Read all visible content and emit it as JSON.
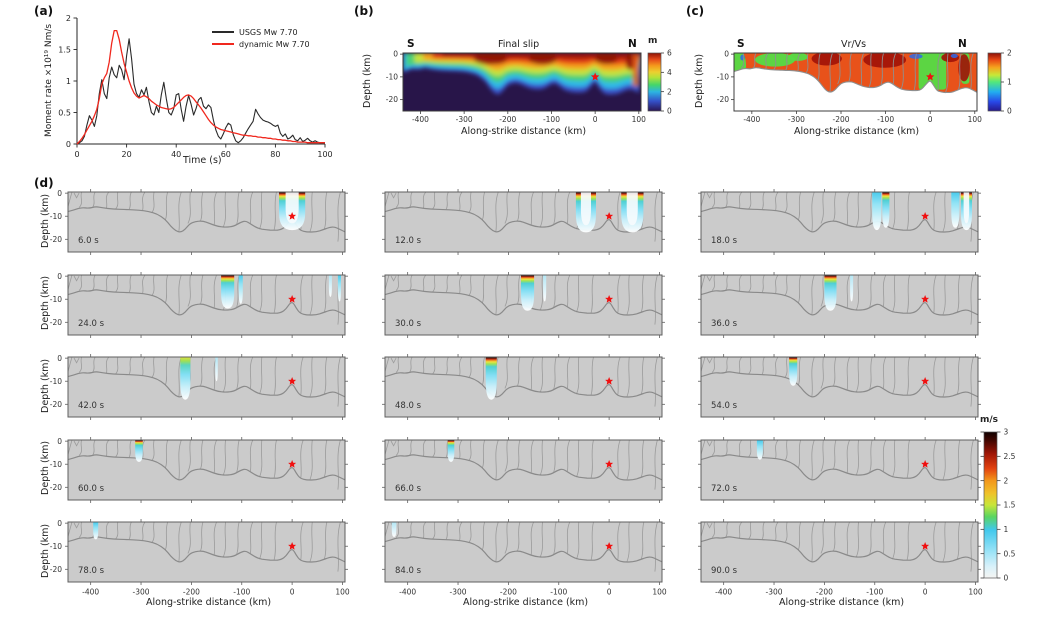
{
  "figure": {
    "background": "#ffffff"
  },
  "panels": {
    "a": {
      "label": "(a)",
      "xlabel": "Time (s)",
      "ylabel": "Moment rate ×10¹⁹ Nm/s",
      "xticks": [
        0,
        20,
        40,
        60,
        80,
        100
      ],
      "yticks": [
        0,
        0.5,
        1,
        1.5,
        2
      ],
      "legend": [
        {
          "label": "USGS Mw 7.70",
          "color": "#2a2a2a"
        },
        {
          "label": "dynamic Mw 7.70",
          "color": "#f0281e"
        }
      ]
    },
    "b": {
      "label": "(b)",
      "title": "Final slip",
      "south": "S",
      "north": "N",
      "xlabel": "Along-strike distance (km)",
      "ylabel": "Depth (km)",
      "xticks": [
        -400,
        -300,
        -200,
        -100,
        0,
        100
      ],
      "yticks": [
        0,
        -10,
        -20
      ],
      "colorbar": {
        "label": "m",
        "ticks": [
          0,
          2,
          4,
          6
        ],
        "stops": [
          [
            0,
            "#2a1553"
          ],
          [
            0.17,
            "#3450c8"
          ],
          [
            0.33,
            "#2cb4e2"
          ],
          [
            0.45,
            "#44d66a"
          ],
          [
            0.58,
            "#b4e238"
          ],
          [
            0.67,
            "#ecd030"
          ],
          [
            0.78,
            "#f59a1c"
          ],
          [
            0.89,
            "#e4491a"
          ],
          [
            1,
            "#8e1206"
          ]
        ]
      }
    },
    "c": {
      "label": "(c)",
      "title": "Vr/Vs",
      "south": "S",
      "north": "N",
      "xlabel": "Along-strike distance (km)",
      "ylabel": "Depth (km)",
      "xticks": [
        -400,
        -300,
        -200,
        -100,
        0,
        100
      ],
      "yticks": [
        0,
        -10,
        -20
      ],
      "colorbar": {
        "label": "",
        "ticks": [
          0,
          1,
          2
        ],
        "stops": [
          [
            0,
            "#26188c"
          ],
          [
            0.16,
            "#2848e8"
          ],
          [
            0.33,
            "#22aef0"
          ],
          [
            0.5,
            "#52e87c"
          ],
          [
            0.62,
            "#c8e838"
          ],
          [
            0.75,
            "#f5a41e"
          ],
          [
            0.88,
            "#e84814"
          ],
          [
            1,
            "#8c1008"
          ]
        ]
      }
    },
    "d": {
      "label": "(d)",
      "xlabel": "Along-strike distance (km)",
      "ylabel": "Depth (km)",
      "xticks": [
        -400,
        -300,
        -200,
        -100,
        0,
        100
      ],
      "yticks": [
        0,
        -10,
        -20
      ],
      "colorbar": {
        "label": "m/s",
        "ticks": [
          0,
          0.5,
          1,
          1.5,
          2,
          2.5,
          3
        ],
        "stops": [
          [
            0,
            "#f5f5f3"
          ],
          [
            0.08,
            "#d8f1fa"
          ],
          [
            0.2,
            "#8fe0f6"
          ],
          [
            0.33,
            "#41c8ec"
          ],
          [
            0.42,
            "#5ad560"
          ],
          [
            0.5,
            "#c8e63a"
          ],
          [
            0.58,
            "#f0c22a"
          ],
          [
            0.67,
            "#f2951a"
          ],
          [
            0.75,
            "#e24210"
          ],
          [
            0.85,
            "#a01606"
          ],
          [
            0.95,
            "#3a0500"
          ],
          [
            1,
            "#100000"
          ]
        ]
      }
    }
  },
  "chart_data": [
    {
      "type": "line",
      "panel": "a",
      "xlabel": "Time (s)",
      "ylabel": "Moment rate ×10¹⁹ Nm/s",
      "xlim": [
        0,
        100
      ],
      "ylim": [
        0,
        2
      ],
      "x_start": 0,
      "x_step": 1,
      "series": [
        {
          "name": "USGS Mw 7.70",
          "color": "#2a2a2a",
          "y": [
            0.0,
            0.02,
            0.05,
            0.12,
            0.3,
            0.45,
            0.38,
            0.28,
            0.45,
            0.8,
            1.02,
            0.8,
            0.72,
            1.05,
            1.22,
            1.1,
            1.05,
            1.25,
            1.18,
            1.02,
            1.4,
            1.67,
            1.35,
            0.95,
            0.8,
            0.74,
            0.86,
            0.78,
            0.9,
            0.68,
            0.5,
            0.46,
            0.6,
            0.5,
            0.78,
            0.98,
            0.72,
            0.5,
            0.46,
            0.56,
            0.78,
            0.8,
            0.55,
            0.36,
            0.6,
            0.77,
            0.63,
            0.46,
            0.56,
            0.7,
            0.74,
            0.6,
            0.56,
            0.62,
            0.58,
            0.38,
            0.22,
            0.12,
            0.08,
            0.16,
            0.26,
            0.33,
            0.3,
            0.15,
            0.05,
            0.02,
            0.05,
            0.1,
            0.17,
            0.24,
            0.3,
            0.36,
            0.55,
            0.48,
            0.42,
            0.38,
            0.36,
            0.35,
            0.33,
            0.3,
            0.28,
            0.3,
            0.17,
            0.12,
            0.16,
            0.08,
            0.1,
            0.14,
            0.07,
            0.05,
            0.1,
            0.04,
            0.06,
            0.09,
            0.05,
            0.03,
            0.05,
            0.03,
            0.02,
            0.02,
            0.02
          ]
        },
        {
          "name": "dynamic Mw 7.70",
          "color": "#f0281e",
          "y": [
            0.0,
            0.04,
            0.09,
            0.15,
            0.22,
            0.29,
            0.36,
            0.45,
            0.55,
            0.72,
            0.95,
            1.05,
            1.12,
            1.3,
            1.6,
            1.8,
            1.8,
            1.66,
            1.46,
            1.28,
            1.14,
            1.0,
            0.89,
            0.81,
            0.76,
            0.73,
            0.75,
            0.77,
            0.75,
            0.72,
            0.68,
            0.65,
            0.62,
            0.6,
            0.58,
            0.57,
            0.56,
            0.55,
            0.56,
            0.58,
            0.62,
            0.66,
            0.7,
            0.74,
            0.77,
            0.78,
            0.76,
            0.72,
            0.67,
            0.62,
            0.57,
            0.51,
            0.45,
            0.39,
            0.34,
            0.3,
            0.27,
            0.25,
            0.23,
            0.22,
            0.21,
            0.2,
            0.19,
            0.18,
            0.17,
            0.16,
            0.15,
            0.14,
            0.14,
            0.13,
            0.13,
            0.12,
            0.12,
            0.11,
            0.11,
            0.1,
            0.1,
            0.09,
            0.09,
            0.08,
            0.08,
            0.07,
            0.07,
            0.06,
            0.06,
            0.05,
            0.05,
            0.04,
            0.04,
            0.03,
            0.03,
            0.03,
            0.03,
            0.02,
            0.02,
            0.02,
            0.02,
            0.02,
            0.02,
            0.02,
            0.02
          ]
        }
      ]
    },
    {
      "type": "heatmap",
      "panel": "b",
      "title": "Final slip",
      "units": "m",
      "zmin": 0,
      "zmax": 6,
      "xlim": [
        -440,
        105
      ],
      "ylim": [
        -25,
        0.5
      ],
      "epicenter": {
        "x_km": 0,
        "depth_km": -10
      },
      "high_slip_band": "4-6 m slip concentrated above ~-8 km from x=-370 to x=100, grading through 2-3 m (green) and 0-1 m (blue) toward the slab bottom; near-zero slip below",
      "slip_zone_bottom_km": [
        [
          -445,
          -8
        ],
        [
          -432,
          -7.2
        ],
        [
          -418,
          -6.2
        ],
        [
          -404,
          -6.6
        ],
        [
          -390,
          -5.8
        ],
        [
          -376,
          -6.4
        ],
        [
          -355,
          -6.9
        ],
        [
          -330,
          -7.1
        ],
        [
          -305,
          -7.3
        ],
        [
          -285,
          -7.9
        ],
        [
          -268,
          -9
        ],
        [
          -252,
          -11.3
        ],
        [
          -241,
          -14.3
        ],
        [
          -231,
          -16.4
        ],
        [
          -221,
          -17
        ],
        [
          -212,
          -15.6
        ],
        [
          -203,
          -13.2
        ],
        [
          -192,
          -12.3
        ],
        [
          -178,
          -12
        ],
        [
          -163,
          -13.2
        ],
        [
          -148,
          -14.4
        ],
        [
          -132,
          -14.8
        ],
        [
          -116,
          -14.4
        ],
        [
          -102,
          -12.6
        ],
        [
          -92,
          -12
        ],
        [
          -82,
          -13.4
        ],
        [
          -68,
          -15.3
        ],
        [
          -52,
          -15.9
        ],
        [
          -36,
          -16.1
        ],
        [
          -22,
          -15.9
        ],
        [
          -12,
          -14.2
        ],
        [
          -4,
          -11.6
        ],
        [
          2,
          -11.4
        ],
        [
          8,
          -13.8
        ],
        [
          16,
          -16.2
        ],
        [
          30,
          -16.9
        ],
        [
          48,
          -16.8
        ],
        [
          62,
          -15.8
        ],
        [
          74,
          -14.8
        ],
        [
          84,
          -14.6
        ],
        [
          94,
          -15.6
        ],
        [
          105,
          -16.8
        ]
      ]
    },
    {
      "type": "heatmap",
      "panel": "c",
      "title": "Vr/Vs",
      "zmin": 0,
      "zmax": 2,
      "xlim": [
        -440,
        105
      ],
      "ylim": [
        -25,
        0.5
      ],
      "epicenter": {
        "x_km": 0,
        "depth_km": -10
      },
      "dominant_ratio_range": [
        1.4,
        2.0
      ],
      "low_ratio_patches_km": [
        [
          -445,
          -410
        ],
        [
          -400,
          -280
        ],
        [
          -28,
          38
        ],
        [
          68,
          90
        ]
      ]
    },
    {
      "type": "heatmap-small-multiples",
      "panel": "d",
      "title": "Slip-rate snapshots",
      "units": "m/s",
      "zmin": 0,
      "zmax": 3,
      "epicenter": {
        "x_km": 0,
        "depth_km": -10
      },
      "snapshots": [
        {
          "time_label": "6.0 s",
          "time_s": 6,
          "pulses": [
            {
              "x_km": 0,
              "width_km": 52,
              "depth_km": -16,
              "intensity": "hot",
              "hollow": true
            }
          ]
        },
        {
          "time_label": "12.0 s",
          "time_s": 12,
          "pulses": [
            {
              "x_km": -46,
              "width_km": 40,
              "depth_km": -17,
              "intensity": "hot",
              "hollow": true
            },
            {
              "x_km": 46,
              "width_km": 44,
              "depth_km": -17,
              "intensity": "hot",
              "hollow": true
            }
          ]
        },
        {
          "time_label": "18.0 s",
          "time_s": 18,
          "pulses": [
            {
              "x_km": -96,
              "width_km": 18,
              "depth_km": -16,
              "intensity": "cyan"
            },
            {
              "x_km": -78,
              "width_km": 14,
              "depth_km": -15,
              "intensity": "hot"
            },
            {
              "x_km": 60,
              "width_km": 16,
              "depth_km": -15,
              "intensity": "cyan"
            },
            {
              "x_km": 82,
              "width_km": 22,
              "depth_km": -16,
              "intensity": "hot",
              "hollow": true
            }
          ]
        },
        {
          "time_label": "24.0 s",
          "time_s": 24,
          "pulses": [
            {
              "x_km": -128,
              "width_km": 26,
              "depth_km": -14,
              "intensity": "hot"
            },
            {
              "x_km": -102,
              "width_km": 8,
              "depth_km": -12,
              "intensity": "cyan"
            },
            {
              "x_km": 76,
              "width_km": 6,
              "depth_km": -9,
              "intensity": "faint"
            },
            {
              "x_km": 94,
              "width_km": 6,
              "depth_km": -11,
              "intensity": "cyan"
            }
          ]
        },
        {
          "time_label": "30.0 s",
          "time_s": 30,
          "pulses": [
            {
              "x_km": -162,
              "width_km": 26,
              "depth_km": -15,
              "intensity": "hot"
            },
            {
              "x_km": -128,
              "width_km": 6,
              "depth_km": -11,
              "intensity": "faint"
            }
          ]
        },
        {
          "time_label": "36.0 s",
          "time_s": 36,
          "pulses": [
            {
              "x_km": -188,
              "width_km": 24,
              "depth_km": -15,
              "intensity": "hot"
            },
            {
              "x_km": -146,
              "width_km": 6,
              "depth_km": -11,
              "intensity": "faint"
            }
          ]
        },
        {
          "time_label": "42.0 s",
          "time_s": 42,
          "pulses": [
            {
              "x_km": -212,
              "width_km": 20,
              "depth_km": -18,
              "intensity": "yellow"
            },
            {
              "x_km": -150,
              "width_km": 5,
              "depth_km": -10,
              "intensity": "faint"
            }
          ]
        },
        {
          "time_label": "48.0 s",
          "time_s": 48,
          "pulses": [
            {
              "x_km": -234,
              "width_km": 22,
              "depth_km": -18,
              "intensity": "hot"
            }
          ]
        },
        {
          "time_label": "54.0 s",
          "time_s": 54,
          "pulses": [
            {
              "x_km": -262,
              "width_km": 16,
              "depth_km": -12,
              "intensity": "hot"
            }
          ]
        },
        {
          "time_label": "60.0 s",
          "time_s": 60,
          "pulses": [
            {
              "x_km": -304,
              "width_km": 15,
              "depth_km": -9,
              "intensity": "hot"
            }
          ]
        },
        {
          "time_label": "66.0 s",
          "time_s": 66,
          "pulses": [
            {
              "x_km": -314,
              "width_km": 13,
              "depth_km": -9,
              "intensity": "hot"
            }
          ]
        },
        {
          "time_label": "72.0 s",
          "time_s": 72,
          "pulses": [
            {
              "x_km": -328,
              "width_km": 12,
              "depth_km": -8,
              "intensity": "cyan"
            }
          ]
        },
        {
          "time_label": "78.0 s",
          "time_s": 78,
          "pulses": [
            {
              "x_km": -390,
              "width_km": 10,
              "depth_km": -7,
              "intensity": "cyan"
            }
          ]
        },
        {
          "time_label": "84.0 s",
          "time_s": 84,
          "pulses": [
            {
              "x_km": -427,
              "width_km": 9,
              "depth_km": -6,
              "intensity": "faint"
            }
          ]
        },
        {
          "time_label": "90.0 s",
          "time_s": 90,
          "pulses": []
        }
      ]
    }
  ]
}
